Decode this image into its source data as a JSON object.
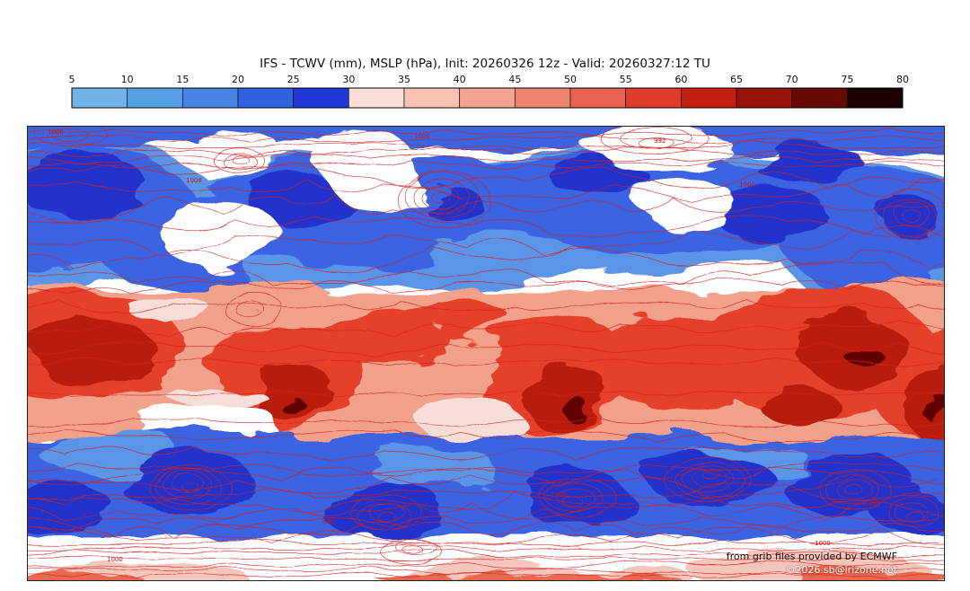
{
  "chart_data": {
    "type": "heatmap",
    "title": "IFS - TCWV (mm), MSLP (hPa), Init: 20260326 12z - Valid: 20260327:12 TU",
    "model": "IFS",
    "variables": "TCWV (mm), MSLP (hPa)",
    "init": "20260326 12z",
    "valid": "20260327:12 TU",
    "colorbar": {
      "units": "mm",
      "ticks": [
        "5",
        "10",
        "15",
        "20",
        "25",
        "30",
        "35",
        "40",
        "45",
        "50",
        "55",
        "60",
        "65",
        "70",
        "75",
        "80"
      ],
      "colors": [
        "#6fb3e8",
        "#58a0e6",
        "#4583e4",
        "#3261e0",
        "#1f37d4",
        "#f8ded6",
        "#f6c2b2",
        "#f2a391",
        "#ee8470",
        "#e96250",
        "#e03c2c",
        "#c32014",
        "#97120a",
        "#660803",
        "#1d0100"
      ]
    },
    "contour_color": "#d42020",
    "mslp_labels": [
      "1000",
      "1000",
      "992",
      "1008",
      "1000",
      "1000",
      "996",
      "992",
      "1000",
      "1000"
    ]
  },
  "credits": {
    "source": "from grib files provided by ECMWF",
    "copyright": "©2026 sb@irizone.net"
  }
}
